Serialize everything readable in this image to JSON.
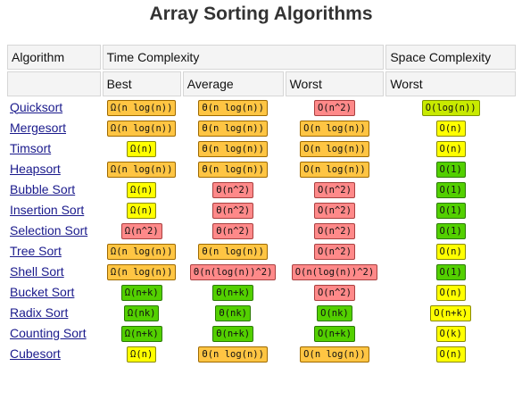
{
  "title": "Array Sorting Algorithms",
  "header": {
    "algorithm": "Algorithm",
    "time_complexity": "Time Complexity",
    "space_complexity": "Space Complexity",
    "best": "Best",
    "average": "Average",
    "worst": "Worst",
    "space_worst": "Worst"
  },
  "colors": {
    "green": "#53d000",
    "lime": "#c8ea00",
    "yellow": "#ffff00",
    "orange": "#ffc543",
    "red": "#ff8989"
  },
  "rows": [
    {
      "name": "Quicksort",
      "best": {
        "text": "Ω(n log(n))",
        "color": "orange"
      },
      "average": {
        "text": "Θ(n log(n))",
        "color": "orange"
      },
      "worst": {
        "text": "O(n^2)",
        "color": "red"
      },
      "space": {
        "text": "O(log(n))",
        "color": "lime"
      }
    },
    {
      "name": "Mergesort",
      "best": {
        "text": "Ω(n log(n))",
        "color": "orange"
      },
      "average": {
        "text": "Θ(n log(n))",
        "color": "orange"
      },
      "worst": {
        "text": "O(n log(n))",
        "color": "orange"
      },
      "space": {
        "text": "O(n)",
        "color": "yellow"
      }
    },
    {
      "name": "Timsort",
      "best": {
        "text": "Ω(n)",
        "color": "yellow"
      },
      "average": {
        "text": "Θ(n log(n))",
        "color": "orange"
      },
      "worst": {
        "text": "O(n log(n))",
        "color": "orange"
      },
      "space": {
        "text": "O(n)",
        "color": "yellow"
      }
    },
    {
      "name": "Heapsort",
      "best": {
        "text": "Ω(n log(n))",
        "color": "orange"
      },
      "average": {
        "text": "Θ(n log(n))",
        "color": "orange"
      },
      "worst": {
        "text": "O(n log(n))",
        "color": "orange"
      },
      "space": {
        "text": "O(1)",
        "color": "green"
      }
    },
    {
      "name": "Bubble Sort",
      "best": {
        "text": "Ω(n)",
        "color": "yellow"
      },
      "average": {
        "text": "Θ(n^2)",
        "color": "red"
      },
      "worst": {
        "text": "O(n^2)",
        "color": "red"
      },
      "space": {
        "text": "O(1)",
        "color": "green"
      }
    },
    {
      "name": "Insertion Sort",
      "best": {
        "text": "Ω(n)",
        "color": "yellow"
      },
      "average": {
        "text": "Θ(n^2)",
        "color": "red"
      },
      "worst": {
        "text": "O(n^2)",
        "color": "red"
      },
      "space": {
        "text": "O(1)",
        "color": "green"
      }
    },
    {
      "name": "Selection Sort",
      "best": {
        "text": "Ω(n^2)",
        "color": "red"
      },
      "average": {
        "text": "Θ(n^2)",
        "color": "red"
      },
      "worst": {
        "text": "O(n^2)",
        "color": "red"
      },
      "space": {
        "text": "O(1)",
        "color": "green"
      }
    },
    {
      "name": "Tree Sort",
      "best": {
        "text": "Ω(n log(n))",
        "color": "orange"
      },
      "average": {
        "text": "Θ(n log(n))",
        "color": "orange"
      },
      "worst": {
        "text": "O(n^2)",
        "color": "red"
      },
      "space": {
        "text": "O(n)",
        "color": "yellow"
      }
    },
    {
      "name": "Shell Sort",
      "best": {
        "text": "Ω(n log(n))",
        "color": "orange"
      },
      "average": {
        "text": "Θ(n(log(n))^2)",
        "color": "red"
      },
      "worst": {
        "text": "O(n(log(n))^2)",
        "color": "red"
      },
      "space": {
        "text": "O(1)",
        "color": "green"
      }
    },
    {
      "name": "Bucket Sort",
      "best": {
        "text": "Ω(n+k)",
        "color": "green"
      },
      "average": {
        "text": "Θ(n+k)",
        "color": "green"
      },
      "worst": {
        "text": "O(n^2)",
        "color": "red"
      },
      "space": {
        "text": "O(n)",
        "color": "yellow"
      }
    },
    {
      "name": "Radix Sort",
      "best": {
        "text": "Ω(nk)",
        "color": "green"
      },
      "average": {
        "text": "Θ(nk)",
        "color": "green"
      },
      "worst": {
        "text": "O(nk)",
        "color": "green"
      },
      "space": {
        "text": "O(n+k)",
        "color": "yellow"
      }
    },
    {
      "name": "Counting Sort",
      "best": {
        "text": "Ω(n+k)",
        "color": "green"
      },
      "average": {
        "text": "Θ(n+k)",
        "color": "green"
      },
      "worst": {
        "text": "O(n+k)",
        "color": "green"
      },
      "space": {
        "text": "O(k)",
        "color": "yellow"
      }
    },
    {
      "name": "Cubesort",
      "best": {
        "text": "Ω(n)",
        "color": "yellow"
      },
      "average": {
        "text": "Θ(n log(n))",
        "color": "orange"
      },
      "worst": {
        "text": "O(n log(n))",
        "color": "orange"
      },
      "space": {
        "text": "O(n)",
        "color": "yellow"
      }
    }
  ]
}
